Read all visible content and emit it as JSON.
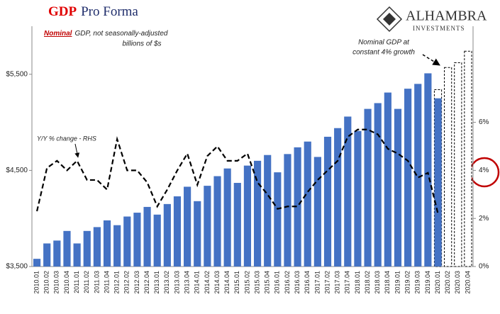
{
  "chart_data": {
    "type": "bar",
    "title": [
      "GDP",
      "Pro Forma"
    ],
    "subtitle": [
      "Nominal",
      "GDP, not seasonally-adjusted"
    ],
    "subtitle_2": "billions of $s",
    "logo": [
      "ALHAMBRA",
      "INVESTMENTS"
    ],
    "annotations": {
      "projection": [
        "Nominal GDP at",
        "constant 4% growth"
      ],
      "line": "Y/Y % change - RHS"
    },
    "categories": [
      "2010.01",
      "2010.02",
      "2010.03",
      "2010.04",
      "2011.01",
      "2011.02",
      "2011.03",
      "2011.04",
      "2012.01",
      "2012.02",
      "2012.03",
      "2012.04",
      "2013.01",
      "2013.02",
      "2013.03",
      "2013.04",
      "2014.01",
      "2014.02",
      "2014.03",
      "2014.04",
      "2015.01",
      "2015.02",
      "2015.03",
      "2015.04",
      "2016.01",
      "2016.02",
      "2016.03",
      "2016.04",
      "2017.01",
      "2017.02",
      "2017.03",
      "2017.04",
      "2018.01",
      "2018.02",
      "2018.03",
      "2018.04",
      "2019.01",
      "2019.02",
      "2019.03",
      "2019.04",
      "2020.01",
      "2020.02",
      "2020.03",
      "2020.04"
    ],
    "series": [
      {
        "color": "#4472c4",
        "style": "solid",
        "values": [
          3580,
          3740,
          3770,
          3870,
          3740,
          3870,
          3910,
          3980,
          3930,
          4020,
          4060,
          4120,
          4040,
          4150,
          4230,
          4330,
          4180,
          4340,
          4440,
          4520,
          4370,
          4550,
          4600,
          4660,
          4480,
          4670,
          4740,
          4800,
          4640,
          4850,
          4940,
          5060,
          4910,
          5140,
          5200,
          5310,
          5140,
          5350,
          5400,
          5510,
          5250,
          null,
          null,
          null
        ]
      },
      {
        "color": "#000000",
        "style": "dashed",
        "values": [
          null,
          null,
          null,
          null,
          null,
          null,
          null,
          null,
          null,
          null,
          null,
          null,
          null,
          null,
          null,
          null,
          null,
          null,
          null,
          null,
          null,
          null,
          null,
          null,
          null,
          null,
          null,
          null,
          null,
          null,
          null,
          null,
          null,
          null,
          null,
          null,
          null,
          null,
          null,
          null,
          5340,
          5570,
          5620,
          5740
        ]
      },
      {
        "color": "#000000",
        "style": "line",
        "axis": "y2",
        "values": [
          2.3,
          4.1,
          4.4,
          4.0,
          4.4,
          3.6,
          3.6,
          3.2,
          5.3,
          4.0,
          4.0,
          3.5,
          2.5,
          3.2,
          4.0,
          4.7,
          3.4,
          4.6,
          5.0,
          4.4,
          4.4,
          4.7,
          3.5,
          3.0,
          2.4,
          2.5,
          2.5,
          3.1,
          3.6,
          4.0,
          4.4,
          5.4,
          5.7,
          5.7,
          5.5,
          4.9,
          4.7,
          4.4,
          3.7,
          3.9,
          2.2,
          null,
          null,
          null
        ]
      }
    ],
    "ylim": [
      3500,
      6000
    ],
    "yticks": [
      {
        "value": 3500,
        "label": "$3,500"
      },
      {
        "value": 4500,
        "label": "$4,500"
      },
      {
        "value": 5500,
        "label": "$5,500"
      }
    ],
    "y2lim": [
      0,
      10
    ],
    "y2ticks": [
      {
        "value": 0,
        "label": "0%"
      },
      {
        "value": 2,
        "label": "2%"
      },
      {
        "value": 4,
        "label": "4%"
      },
      {
        "value": 6,
        "label": "6%"
      }
    ],
    "grid": false
  }
}
